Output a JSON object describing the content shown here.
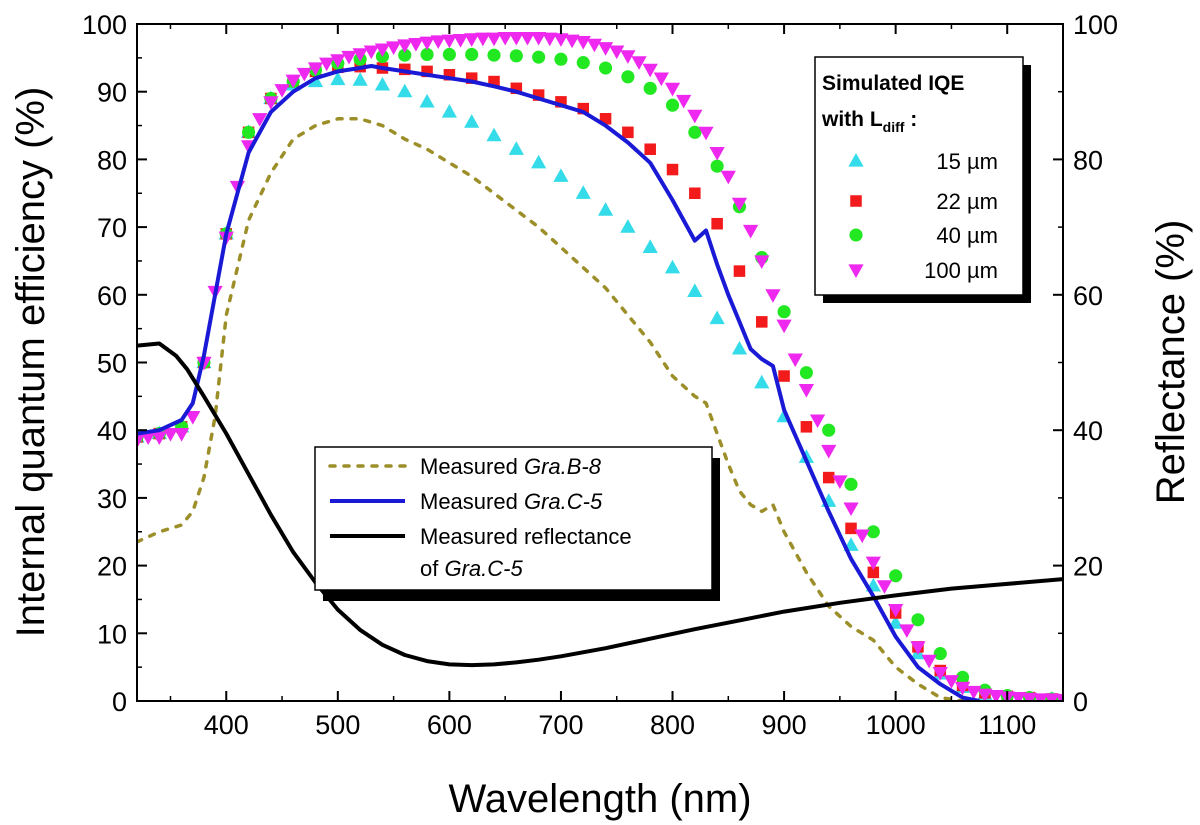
{
  "chart_data": {
    "type": "scatter",
    "xlabel": "Wavelength (nm)",
    "ylabel": "Internal quantum efficiency (%)",
    "y2label": "Reflectance (%)",
    "xlim": [
      320,
      1150
    ],
    "ylim": [
      0,
      100
    ],
    "y2lim": [
      0,
      100
    ],
    "xticks": [
      400,
      500,
      600,
      700,
      800,
      900,
      1000,
      1100
    ],
    "yticks": [
      0,
      10,
      20,
      30,
      40,
      50,
      60,
      70,
      80,
      90,
      100
    ],
    "y2ticks": [
      0,
      20,
      40,
      60,
      80,
      100
    ],
    "grid": false,
    "lines": [
      {
        "name": "Measured Gra.B-8",
        "label_prefix": "Measured ",
        "label_italic": "Gra.B-8",
        "color": "#9c8f2a",
        "style": "dotted",
        "x": [
          320,
          340,
          360,
          370,
          380,
          390,
          400,
          420,
          440,
          460,
          480,
          500,
          520,
          540,
          560,
          580,
          600,
          620,
          640,
          660,
          680,
          700,
          720,
          740,
          760,
          780,
          800,
          820,
          830,
          840,
          850,
          860,
          870,
          880,
          890,
          900,
          920,
          940,
          960,
          980,
          1000,
          1020,
          1040,
          1060
        ],
        "y": [
          23.5,
          25,
          26,
          28,
          33,
          42,
          57,
          71,
          78,
          83,
          85,
          86,
          86,
          85,
          83,
          81.5,
          79.5,
          77.5,
          75,
          72.5,
          70,
          67,
          64,
          61,
          57,
          53,
          48,
          45,
          44,
          39.5,
          35,
          31,
          29,
          28,
          29,
          25,
          19,
          14,
          11,
          9,
          5,
          2.5,
          0.5,
          0
        ]
      },
      {
        "name": "Measured Gra.C-5",
        "label_prefix": "Measured ",
        "label_italic": "Gra.C-5",
        "color": "#1a1ad6",
        "style": "solid",
        "x": [
          320,
          340,
          360,
          370,
          380,
          390,
          400,
          420,
          440,
          460,
          480,
          500,
          520,
          530,
          540,
          560,
          580,
          600,
          620,
          640,
          660,
          680,
          700,
          720,
          740,
          760,
          780,
          800,
          820,
          830,
          840,
          850,
          860,
          870,
          880,
          890,
          900,
          920,
          940,
          960,
          980,
          1000,
          1020,
          1040,
          1060,
          1075
        ],
        "y": [
          39.5,
          40,
          41.5,
          44,
          51,
          60,
          69,
          81,
          87,
          90,
          92,
          93,
          93.5,
          93.8,
          93.5,
          93,
          92.5,
          92,
          91.5,
          90.8,
          90,
          89,
          88,
          87,
          85,
          82.5,
          79.5,
          74,
          68,
          69.5,
          64.5,
          60,
          56,
          52,
          50.5,
          49.5,
          43,
          35.5,
          28,
          21,
          15.5,
          9.5,
          5,
          2.5,
          0.5,
          0
        ]
      },
      {
        "name": "Measured reflectance of Gra.C-5",
        "label_prefix": "Measured reflectance",
        "label_line2_prefix": "of ",
        "label_italic": "Gra.C-5",
        "color": "#000000",
        "style": "solid",
        "axis": "right",
        "x": [
          320,
          340,
          355,
          365,
          380,
          400,
          420,
          440,
          460,
          480,
          500,
          520,
          540,
          560,
          580,
          600,
          620,
          640,
          660,
          680,
          700,
          740,
          780,
          820,
          860,
          900,
          950,
          1000,
          1050,
          1100,
          1150
        ],
        "y": [
          52.5,
          52.8,
          51,
          49,
          45,
          39.5,
          33.5,
          27.5,
          22,
          17.5,
          13.5,
          10.5,
          8.3,
          6.8,
          5.9,
          5.4,
          5.3,
          5.4,
          5.7,
          6.1,
          6.6,
          7.8,
          9.2,
          10.6,
          11.9,
          13.2,
          14.5,
          15.6,
          16.6,
          17.3,
          18
        ]
      }
    ],
    "simulated": {
      "x_step": 10,
      "series": [
        {
          "name": "15 µm",
          "marker": "triangle-up",
          "color": "#33dce8",
          "x": [
            320,
            340,
            360,
            380,
            400,
            420,
            440,
            460,
            480,
            500,
            520,
            540,
            560,
            580,
            600,
            620,
            640,
            660,
            680,
            700,
            720,
            740,
            760,
            780,
            800,
            820,
            840,
            860,
            880,
            900,
            920,
            940,
            960,
            980,
            1000,
            1020,
            1040,
            1060,
            1080,
            1100,
            1120,
            1140
          ],
          "y": [
            39,
            39.5,
            40.5,
            50,
            69,
            84,
            89,
            91,
            91.5,
            91.8,
            91.7,
            91,
            90,
            88.5,
            87,
            85.5,
            83.5,
            81.5,
            79.5,
            77.5,
            75,
            72.5,
            70,
            67,
            64,
            60.5,
            56.5,
            52,
            47,
            42,
            36,
            29.5,
            23,
            17,
            11.5,
            7,
            4,
            2,
            1,
            0.6,
            0.4,
            0.3
          ]
        },
        {
          "name": "22 µm",
          "marker": "square",
          "color": "#f21a1a",
          "x": [
            320,
            340,
            360,
            380,
            400,
            420,
            440,
            460,
            480,
            500,
            520,
            540,
            560,
            580,
            600,
            620,
            640,
            660,
            680,
            700,
            720,
            740,
            760,
            780,
            800,
            820,
            840,
            860,
            880,
            900,
            920,
            940,
            960,
            980,
            1000,
            1020,
            1040,
            1060,
            1080,
            1100,
            1120,
            1140
          ],
          "y": [
            39,
            39.5,
            40.5,
            50,
            69,
            84,
            89,
            91.5,
            93,
            93.6,
            93.7,
            93.5,
            93.3,
            93,
            92.5,
            92,
            91.5,
            90.5,
            89.5,
            88.5,
            87.5,
            86,
            84,
            81.5,
            78.5,
            75,
            70.5,
            63.5,
            56,
            48,
            40.5,
            33,
            25.5,
            19,
            13,
            8,
            4.5,
            2.3,
            1.2,
            0.7,
            0.5,
            0.3
          ]
        },
        {
          "name": "40 µm",
          "marker": "circle",
          "color": "#22e822",
          "x": [
            320,
            340,
            360,
            380,
            400,
            420,
            440,
            460,
            480,
            500,
            520,
            540,
            560,
            580,
            600,
            620,
            640,
            660,
            680,
            700,
            720,
            740,
            760,
            780,
            800,
            820,
            840,
            860,
            880,
            900,
            920,
            940,
            960,
            980,
            1000,
            1020,
            1040,
            1060,
            1080,
            1100,
            1120,
            1140
          ],
          "y": [
            39,
            39.5,
            40.5,
            50,
            69,
            84,
            89,
            91.5,
            93.2,
            94.2,
            94.8,
            95.2,
            95.4,
            95.5,
            95.5,
            95.5,
            95.4,
            95.3,
            95.1,
            94.8,
            94.3,
            93.5,
            92.2,
            90.5,
            88,
            84,
            79,
            73,
            65.5,
            57.5,
            48.5,
            40,
            32,
            25,
            18.5,
            12,
            7,
            3.5,
            1.6,
            0.8,
            0.5,
            0.3
          ]
        },
        {
          "name": "100 µm",
          "marker": "triangle-down",
          "color": "#ee28ee",
          "x": [
            320,
            330,
            340,
            350,
            360,
            370,
            380,
            390,
            400,
            410,
            420,
            430,
            440,
            450,
            460,
            470,
            480,
            490,
            500,
            510,
            520,
            530,
            540,
            550,
            560,
            570,
            580,
            590,
            600,
            610,
            620,
            630,
            640,
            650,
            660,
            670,
            680,
            690,
            700,
            710,
            720,
            730,
            740,
            750,
            760,
            770,
            780,
            790,
            800,
            810,
            820,
            830,
            840,
            850,
            860,
            870,
            880,
            890,
            900,
            910,
            920,
            930,
            940,
            950,
            960,
            970,
            980,
            990,
            1000,
            1010,
            1020,
            1030,
            1040,
            1050,
            1060,
            1070,
            1080,
            1090,
            1100,
            1110,
            1120,
            1130,
            1140,
            1150
          ],
          "y": [
            38.5,
            39,
            39,
            39.5,
            39.5,
            42,
            50,
            60.5,
            68.5,
            76,
            82,
            86,
            88.5,
            90.3,
            91.7,
            92.7,
            93.5,
            94.2,
            94.7,
            95.2,
            95.6,
            96,
            96.3,
            96.6,
            96.9,
            97.1,
            97.3,
            97.5,
            97.6,
            97.7,
            97.8,
            97.9,
            97.9,
            98,
            98,
            98,
            98,
            97.9,
            97.8,
            97.6,
            97.4,
            97,
            96.5,
            96,
            95.3,
            94.4,
            93.3,
            92,
            90.5,
            88.7,
            86.5,
            84,
            81,
            77.5,
            73.5,
            69.5,
            65,
            60,
            55.5,
            50.5,
            46,
            41.5,
            37,
            32.5,
            28.5,
            24.5,
            20.5,
            17,
            13.5,
            10.5,
            8,
            6,
            4.2,
            3,
            2,
            1.4,
            1,
            0.8,
            0.6,
            0.5,
            0.4,
            0.3,
            0.3,
            0.2
          ]
        }
      ]
    },
    "legend_lines": {
      "placement": "center-left"
    },
    "legend_markers": {
      "placement": "top-right",
      "title_line1": "Simulated IQE",
      "title_line2_prefix": "with L",
      "title_line2_sub": "diff",
      "title_line2_suffix": " :"
    }
  }
}
